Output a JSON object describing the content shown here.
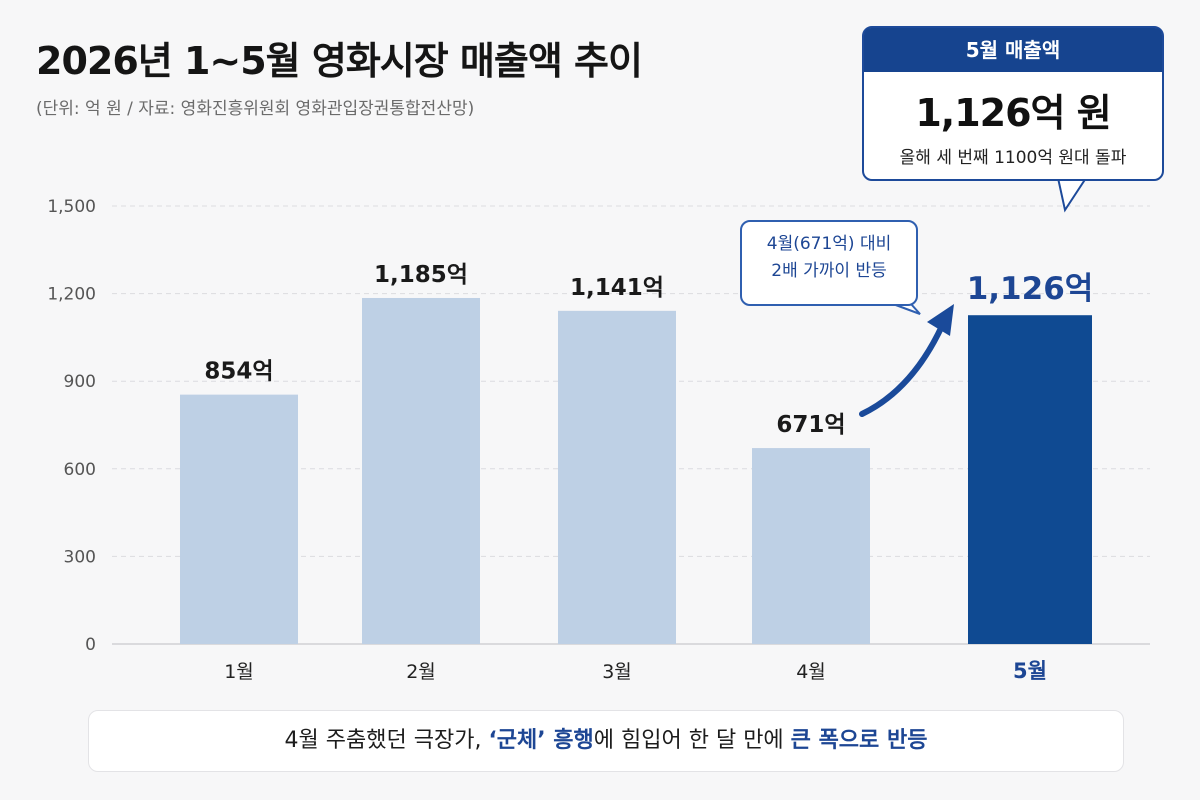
{
  "header": {
    "title": "2026년 1~5월 영화시장 매출액 추이",
    "subtitle": "(단위: 억 원 / 자료: 영화진흥위원회 영화관입장권통합전산망)"
  },
  "callout": {
    "header": "5월 매출액",
    "value": "1,126억 원",
    "note": "올해 세 번째 1100억 원대 돌파"
  },
  "annotation": {
    "line1": "4월(671억) 대비",
    "line2": "2배 가까이 반등"
  },
  "footer": {
    "part1": "4월 주춤했던 극장가, ",
    "part2": "‘군체’ 흥행",
    "part3": "에 힘입어 한 달 만에 ",
    "part4": "큰 폭으로 반등"
  },
  "colors": {
    "bar_normal": "#bed0e5",
    "bar_highlight": "#0f4a92",
    "highlight_text": "#1d4694",
    "grid": "#dcdcdf"
  },
  "chart_data": {
    "type": "bar",
    "categories": [
      "1월",
      "2월",
      "3월",
      "4월",
      "5월"
    ],
    "values": [
      854,
      1185,
      1141,
      671,
      1126
    ],
    "data_labels": [
      "854억",
      "1,185억",
      "1,141억",
      "671억",
      "1,126억"
    ],
    "highlight_index": 4,
    "ylim": [
      0,
      1500
    ],
    "yticks": [
      0,
      300,
      600,
      900,
      1200,
      1500
    ],
    "ytick_labels": [
      "0",
      "300",
      "600",
      "900",
      "1,200",
      "1,500"
    ],
    "grid": true,
    "xlabel": "",
    "ylabel": ""
  }
}
